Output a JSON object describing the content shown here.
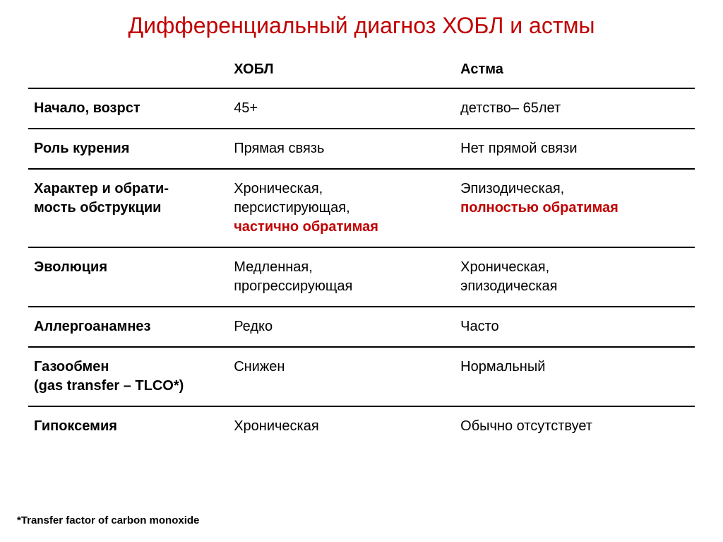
{
  "title": "Дифференциальный диагноз ХОБЛ и астмы",
  "columns": {
    "blank": "",
    "hobl": "ХОБЛ",
    "astma": "Астма"
  },
  "rows": {
    "r0": {
      "label": "Начало, возрст",
      "hobl": "45+",
      "astma": "детство– 65лет"
    },
    "r1": {
      "label": "Роль курения",
      "hobl": "Прямая связь",
      "astma": "Нет прямой связи"
    },
    "r2": {
      "label": "Характер и обрати-\nмость обструкции",
      "hobl_part1": "Хроническая,\nперсистирующая,",
      "hobl_part2": "частично обратимая",
      "astma_part1": "Эпизодическая,",
      "astma_part2": "полностью обратимая"
    },
    "r3": {
      "label": "Эволюция",
      "hobl": "Медленная,\nпрогрессирующая",
      "astma": "Хроническая,\nэпизодическая"
    },
    "r4": {
      "label": "Аллергоанамнез",
      "hobl": "Редко",
      "astma": "Часто"
    },
    "r5": {
      "label": "Газообмен\n(gas transfer – TLCO*)",
      "hobl": "Снижен",
      "astma": "Нормальный"
    },
    "r6": {
      "label": "Гипоксемия",
      "hobl": "Хроническая",
      "astma": "Обычно отсутствует"
    }
  },
  "footnote": "*Transfer factor of carbon monoxide",
  "styling": {
    "title_color": "#c00000",
    "title_fontsize": 32,
    "body_fontsize": 20,
    "highlight_color": "#c00000",
    "text_color": "#000000",
    "border_color": "#000000",
    "border_width": 2,
    "background_color": "#ffffff",
    "footnote_fontsize": 15,
    "col_widths_pct": [
      30,
      34,
      36
    ]
  }
}
